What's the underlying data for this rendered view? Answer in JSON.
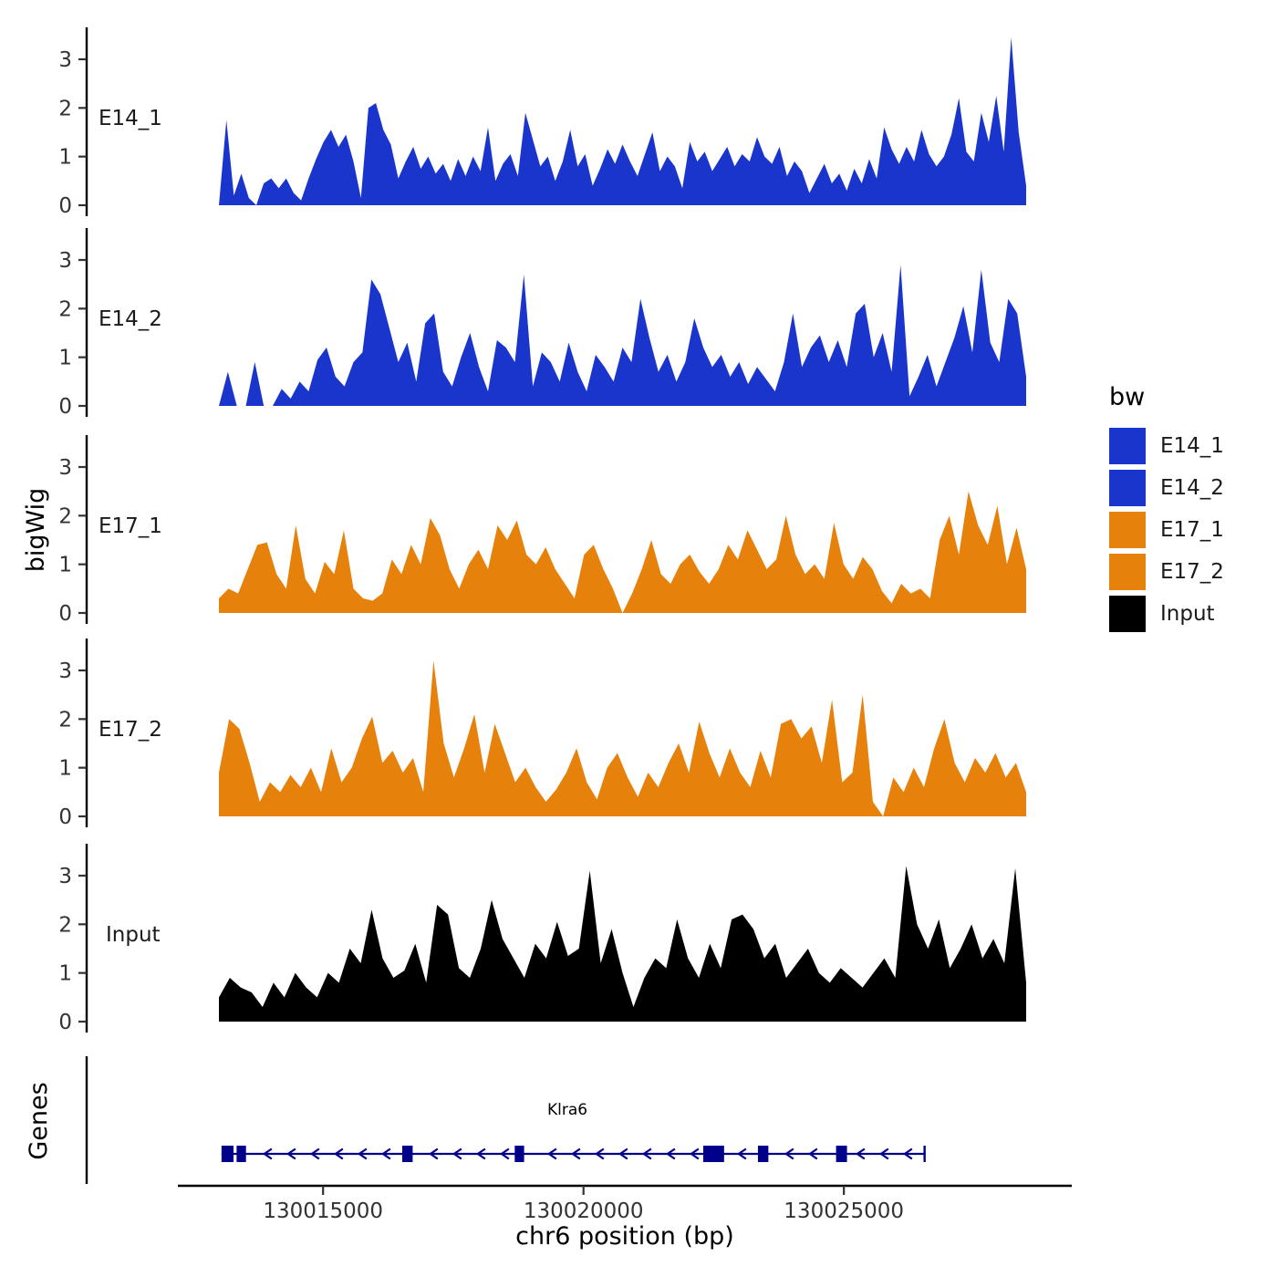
{
  "chart_data": {
    "type": "area",
    "title": "",
    "ylabel": "bigWig",
    "xlabel": "chr6 position (bp)",
    "y_ticks": [
      0,
      1,
      2,
      3
    ],
    "y_domain": [
      0,
      3.5
    ],
    "x_ticks": [
      130015000,
      130020000,
      130025000
    ],
    "x_domain": [
      130013000,
      130028500
    ],
    "grid": false,
    "legend_position": "right",
    "tracks": [
      {
        "name": "E14_1",
        "color": "#1A35CC",
        "values": [
          0,
          1.75,
          0.2,
          0.65,
          0.15,
          0,
          0.45,
          0.55,
          0.35,
          0.55,
          0.25,
          0.1,
          0.55,
          0.95,
          1.3,
          1.55,
          1.2,
          1.45,
          0.9,
          0.15,
          2.0,
          2.1,
          1.55,
          1.25,
          0.55,
          0.9,
          1.2,
          0.75,
          1.0,
          0.65,
          0.85,
          0.5,
          0.95,
          0.6,
          1.0,
          0.7,
          1.6,
          0.5,
          0.85,
          1.05,
          0.6,
          1.9,
          1.35,
          0.8,
          1.0,
          0.5,
          0.9,
          1.55,
          0.8,
          1.05,
          0.4,
          0.75,
          1.15,
          0.85,
          1.25,
          0.9,
          0.6,
          1.05,
          1.5,
          0.7,
          1.0,
          0.8,
          0.35,
          1.3,
          0.9,
          1.1,
          0.7,
          0.95,
          1.2,
          0.8,
          1.05,
          0.9,
          1.4,
          1.0,
          0.85,
          1.2,
          0.6,
          0.9,
          0.7,
          0.25,
          0.55,
          0.85,
          0.45,
          0.65,
          0.3,
          0.75,
          0.45,
          0.95,
          0.55,
          1.6,
          1.15,
          0.85,
          1.2,
          0.9,
          1.55,
          1.05,
          0.8,
          1.0,
          1.45,
          2.2,
          1.1,
          0.9,
          1.9,
          1.3,
          2.25,
          1.1,
          3.45,
          1.5,
          0.4
        ]
      },
      {
        "name": "E14_2",
        "color": "#1A35CC",
        "values": [
          0,
          0.7,
          0,
          0,
          0.9,
          0,
          0,
          0.35,
          0.15,
          0.5,
          0.3,
          0.95,
          1.2,
          0.6,
          0.4,
          0.9,
          1.1,
          2.6,
          2.3,
          1.6,
          0.9,
          1.3,
          0.5,
          1.7,
          1.9,
          0.7,
          0.4,
          1.0,
          1.5,
          0.8,
          0.3,
          1.35,
          1.2,
          0.9,
          2.7,
          0.4,
          1.1,
          0.9,
          0.5,
          1.3,
          0.7,
          0.3,
          1.05,
          0.8,
          0.5,
          1.2,
          0.9,
          2.2,
          1.4,
          0.7,
          1.05,
          0.5,
          0.9,
          1.8,
          1.2,
          0.8,
          1.05,
          0.6,
          0.9,
          0.45,
          0.8,
          0.55,
          0.3,
          0.9,
          1.9,
          0.8,
          1.2,
          1.45,
          0.9,
          1.35,
          0.8,
          1.9,
          2.1,
          1.0,
          1.5,
          0.7,
          2.9,
          0.2,
          0.6,
          1.05,
          0.4,
          0.9,
          1.4,
          2.05,
          1.1,
          2.8,
          1.3,
          0.9,
          2.2,
          1.9,
          0.6
        ]
      },
      {
        "name": "E17_1",
        "color": "#E6820C",
        "values": [
          0.3,
          0.5,
          0.4,
          0.9,
          1.4,
          1.45,
          0.8,
          0.5,
          1.8,
          0.7,
          0.4,
          1.05,
          0.8,
          1.7,
          0.5,
          0.3,
          0.25,
          0.4,
          1.1,
          0.8,
          1.4,
          1.0,
          1.95,
          1.6,
          0.9,
          0.5,
          1.0,
          1.3,
          0.9,
          1.8,
          1.5,
          1.9,
          1.2,
          1.0,
          1.35,
          0.9,
          0.6,
          0.3,
          1.2,
          1.4,
          0.9,
          0.5,
          0,
          0.4,
          0.9,
          1.5,
          0.8,
          0.6,
          1.0,
          1.2,
          0.85,
          0.6,
          0.9,
          1.4,
          1.1,
          1.7,
          1.3,
          0.9,
          1.1,
          2.0,
          1.2,
          0.8,
          1.0,
          0.7,
          1.85,
          1.0,
          0.7,
          1.15,
          0.9,
          0.45,
          0.2,
          0.6,
          0.4,
          0.5,
          0.3,
          1.5,
          2.0,
          1.2,
          2.5,
          1.8,
          1.4,
          2.2,
          1.0,
          1.75,
          0.9
        ]
      },
      {
        "name": "E17_2",
        "color": "#E6820C",
        "values": [
          0.9,
          2.0,
          1.8,
          1.1,
          0.3,
          0.7,
          0.5,
          0.85,
          0.6,
          1.0,
          0.5,
          1.4,
          0.7,
          1.0,
          1.6,
          2.05,
          1.1,
          1.35,
          0.9,
          1.2,
          0.5,
          3.2,
          1.5,
          0.8,
          1.4,
          2.1,
          0.9,
          1.9,
          1.3,
          0.7,
          1.0,
          0.6,
          0.3,
          0.55,
          0.9,
          1.4,
          0.7,
          0.35,
          1.0,
          1.3,
          0.8,
          0.4,
          0.9,
          0.6,
          1.1,
          1.5,
          0.9,
          1.95,
          1.3,
          0.8,
          1.4,
          0.9,
          0.6,
          1.35,
          0.8,
          1.9,
          2.0,
          1.6,
          1.85,
          1.1,
          2.4,
          0.7,
          0.9,
          2.5,
          0.3,
          0,
          0.8,
          0.5,
          1.0,
          0.6,
          1.4,
          2.0,
          1.1,
          0.7,
          1.2,
          0.9,
          1.3,
          0.8,
          1.1,
          0.5
        ]
      },
      {
        "name": "Input",
        "color": "#000000",
        "values": [
          0.5,
          0.9,
          0.7,
          0.6,
          0.3,
          0.8,
          0.5,
          1.0,
          0.7,
          0.5,
          1.0,
          0.8,
          1.5,
          1.2,
          2.3,
          1.3,
          0.9,
          1.05,
          1.6,
          0.8,
          2.4,
          2.2,
          1.1,
          0.9,
          1.5,
          2.5,
          1.7,
          1.3,
          0.9,
          1.6,
          1.3,
          2.05,
          1.35,
          1.5,
          3.1,
          1.2,
          1.9,
          1.0,
          0.3,
          0.9,
          1.3,
          1.1,
          2.1,
          1.3,
          0.9,
          1.6,
          1.1,
          2.1,
          2.2,
          1.9,
          1.3,
          1.6,
          0.9,
          1.2,
          1.5,
          1.0,
          0.8,
          1.1,
          0.9,
          0.7,
          1.0,
          1.3,
          0.9,
          3.2,
          2.0,
          1.5,
          2.1,
          1.1,
          1.5,
          2.0,
          1.3,
          1.7,
          1.2,
          3.15,
          0.8
        ]
      }
    ],
    "legend": {
      "title": "bw",
      "items": [
        {
          "label": "E14_1",
          "color": "#1A35CC"
        },
        {
          "label": "E14_2",
          "color": "#1A35CC"
        },
        {
          "label": "E17_1",
          "color": "#E6820C"
        },
        {
          "label": "E17_2",
          "color": "#E6820C"
        },
        {
          "label": "Input",
          "color": "#000000"
        }
      ]
    },
    "genes": {
      "panel_label": "Genes",
      "gene": {
        "name": "Klra6",
        "strand": "-",
        "color": "#00008B",
        "start": 130013050,
        "end": 130026550,
        "exons": [
          [
            130013050,
            130013280
          ],
          [
            130013340,
            130013520
          ],
          [
            130016520,
            130016720
          ],
          [
            130018680,
            130018860
          ],
          [
            130022300,
            130022700
          ],
          [
            130023350,
            130023550
          ],
          [
            130024850,
            130025060
          ]
        ]
      }
    }
  }
}
